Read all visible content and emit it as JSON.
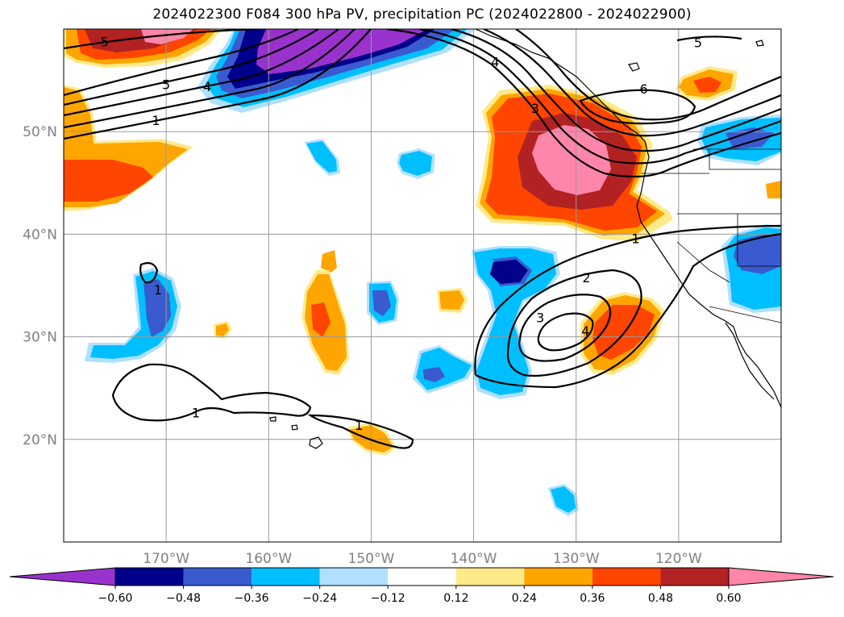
{
  "title": "2024022300 F084 300 hPa PV, precipitation PC (2024022800 - 2024022900)",
  "map": {
    "lon_range": [
      -180,
      -110
    ],
    "lat_range": [
      10,
      60
    ],
    "lat_ticks": [
      {
        "value": 20,
        "label": "20°N"
      },
      {
        "value": 30,
        "label": "30°N"
      },
      {
        "value": 40,
        "label": "40°N"
      },
      {
        "value": 50,
        "label": "50°N"
      }
    ],
    "lon_ticks": [
      {
        "value": -170,
        "label": "170°W"
      },
      {
        "value": -160,
        "label": "160°W"
      },
      {
        "value": -150,
        "label": "150°W"
      },
      {
        "value": -140,
        "label": "140°W"
      },
      {
        "value": -130,
        "label": "130°W"
      },
      {
        "value": -120,
        "label": "120°W"
      }
    ],
    "gridlines": true
  },
  "pv_contour_labels": [
    {
      "text": "5",
      "lon": -176,
      "lat": 58.8
    },
    {
      "text": "5",
      "lon": -170,
      "lat": 54.6
    },
    {
      "text": "4",
      "lon": -166,
      "lat": 54.4
    },
    {
      "text": "1",
      "lon": -171,
      "lat": 51.1
    },
    {
      "text": "4",
      "lon": -137.9,
      "lat": 56.8
    },
    {
      "text": "3",
      "lon": -134,
      "lat": 52.3
    },
    {
      "text": "6",
      "lon": -123.4,
      "lat": 54.2
    },
    {
      "text": "5",
      "lon": -118.1,
      "lat": 58.7
    },
    {
      "text": "1",
      "lon": -170.8,
      "lat": 34.6
    },
    {
      "text": "1",
      "lon": -124.2,
      "lat": 39.6
    },
    {
      "text": "2",
      "lon": -129,
      "lat": 35.8
    },
    {
      "text": "3",
      "lon": -133.5,
      "lat": 31.9
    },
    {
      "text": "4",
      "lon": -129.1,
      "lat": 30.6
    },
    {
      "text": "1",
      "lon": -167.1,
      "lat": 22.6
    },
    {
      "text": "1",
      "lon": -151.2,
      "lat": 21.4
    }
  ],
  "colorbar": {
    "levels": [
      "-0.60",
      "-0.48",
      "-0.36",
      "-0.24",
      "-0.12",
      "0.12",
      "0.24",
      "0.36",
      "0.48",
      "0.60"
    ],
    "colors": [
      "#9932cc",
      "#00008b",
      "#3a5bd0",
      "#00bfff",
      "#b0e0ff",
      "#ffffff",
      "#ffea8a",
      "#ffa500",
      "#ff4500",
      "#b22222",
      "#ff85aa"
    ]
  },
  "colors": {
    "purple": "#9932cc",
    "navy": "#00008b",
    "blue": "#3a5bd0",
    "deepsky": "#00bfff",
    "lightblue": "#b0e0ff",
    "lightyellow": "#ffea8a",
    "orange": "#ffa500",
    "red": "#ff4500",
    "firebrick": "#b22222",
    "pink": "#ff85aa"
  }
}
